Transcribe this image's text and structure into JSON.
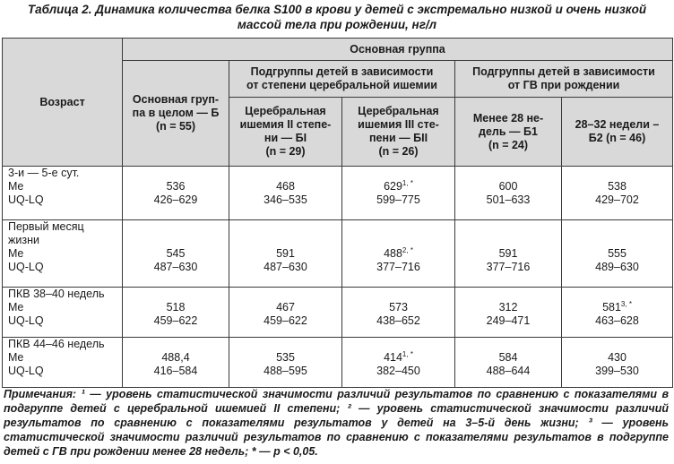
{
  "caption": {
    "line1": "Таблица 2. Динамика количества белка S100 в крови у детей с экстремально низкой и очень низкой",
    "line2": "массой тела при рождении, нг/л"
  },
  "header": {
    "age": "Возраст",
    "main_group": "Основная группа",
    "whole_group": [
      "Основная груп-",
      "па в целом — Б",
      "(n = 55)"
    ],
    "ischemia_subgroups": [
      "Подгруппы детей в зависимости",
      "от степени церебральной ишемии"
    ],
    "gv_subgroups": [
      "Подгруппы детей в зависимости",
      "от ГВ при рождении"
    ],
    "b1": [
      "Церебральная",
      "ишемия II степе-",
      "ни — БI",
      "(n = 29)"
    ],
    "b2": [
      "Церебральная",
      "ишемия III сте-",
      "пени — БII",
      "(n = 26)"
    ],
    "c1": [
      "Менее 28 не-",
      "дель — Б1",
      "(n = 24)"
    ],
    "c2": [
      "28–32 недели –",
      "Б2 (n = 46)"
    ]
  },
  "rows": [
    {
      "age": [
        "3-и — 5-е сут.",
        "Me",
        "UQ-LQ"
      ],
      "cells": [
        {
          "me": "536",
          "sup": "",
          "range": "426–629"
        },
        {
          "me": "468",
          "sup": "",
          "range": "346–535"
        },
        {
          "me": "629",
          "sup": "1, *",
          "range": "599–775"
        },
        {
          "me": "600",
          "sup": "",
          "range": "501–633"
        },
        {
          "me": "538",
          "sup": "",
          "range": "429–702"
        }
      ]
    },
    {
      "age": [
        "Первый месяц",
        "жизни",
        "Me",
        "UQ-LQ"
      ],
      "cells": [
        {
          "me": "545",
          "sup": "",
          "range": "487–630"
        },
        {
          "me": "591",
          "sup": "",
          "range": "487–630"
        },
        {
          "me": "488",
          "sup": "2, *",
          "range": "377–716"
        },
        {
          "me": "591",
          "sup": "",
          "range": "377–716"
        },
        {
          "me": "555",
          "sup": "",
          "range": "489–630"
        }
      ]
    },
    {
      "age": [
        "ПКВ 38–40 недель",
        "Me",
        "UQ-LQ"
      ],
      "cells": [
        {
          "me": "518",
          "sup": "",
          "range": "459–622"
        },
        {
          "me": "467",
          "sup": "",
          "range": "459–622"
        },
        {
          "me": "573",
          "sup": "",
          "range": "438–652"
        },
        {
          "me": "312",
          "sup": "",
          "range": "249–471"
        },
        {
          "me": "581",
          "sup": "3, *",
          "range": "463–628"
        }
      ]
    },
    {
      "age": [
        "ПКВ 44–46 недель",
        "Me",
        "UQ-LQ"
      ],
      "cells": [
        {
          "me": "488,4",
          "sup": "",
          "range": "416–584"
        },
        {
          "me": "535",
          "sup": "",
          "range": "488–595"
        },
        {
          "me": "414",
          "sup": "1, *",
          "range": "382–450"
        },
        {
          "me": "584",
          "sup": "",
          "range": "488–644"
        },
        {
          "me": "430",
          "sup": "",
          "range": "399–530"
        }
      ]
    }
  ],
  "notes": "Примечания: ¹ — уровень статистической значимости различий результатов по сравнению с показателями в подгруппе детей с церебральной ишемией II степени; ² — уровень статистической значимости различий результатов по сравнению с показателями результатов у детей на 3–5-й день жизни; ³ — уровень статистической значимости различий результатов по сравнению с показателями результатов в подгруппе детей с ГВ при рождении менее 28 недель; * — p < 0,05."
}
